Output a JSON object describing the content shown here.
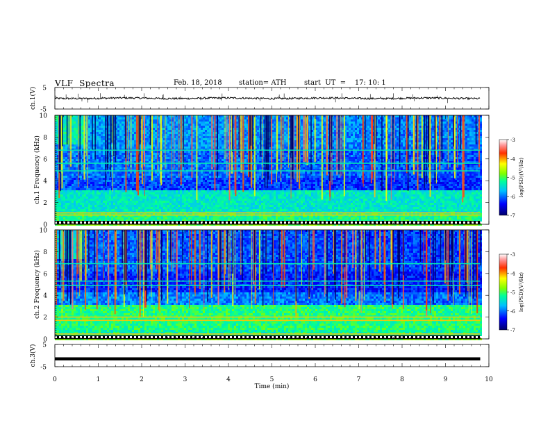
{
  "header": {
    "title": "VLF  Spectra",
    "date": "Feb. 18, 2018",
    "station": "station= ATH",
    "start": "start  UT  =    17: 10: 1"
  },
  "chart_data": [
    {
      "type": "line",
      "title": "",
      "ylabel": "ch.1(V)",
      "xlim": [
        0,
        10
      ],
      "ylim": [
        -5,
        5
      ],
      "yticks": [
        "5",
        "-5"
      ],
      "description_values": {
        "baseline_v": 0,
        "noise_amplitude_v": 0.6,
        "spike_amplitude_v": 2.5
      },
      "color": "#000000"
    },
    {
      "type": "heatmap",
      "ylabel": "ch.1  Frequency  (kHz)",
      "xlim": [
        0,
        10
      ],
      "ylim": [
        0,
        10
      ],
      "yticks": [
        "0",
        "2",
        "4",
        "6",
        "8",
        "10"
      ],
      "data_end_min": 9.8,
      "colorbar": {
        "label": "log(PSD)(V²/Hz)",
        "range": [
          -7,
          -3
        ],
        "ticks": [
          "-3",
          "-4",
          "-5",
          "-6",
          "-7"
        ]
      }
    },
    {
      "type": "heatmap",
      "ylabel": "ch.2  Frequency  (kHz)",
      "xlim": [
        0,
        10
      ],
      "ylim": [
        0,
        10
      ],
      "yticks": [
        "0",
        "2",
        "4",
        "6",
        "8",
        "10"
      ],
      "data_end_min": 9.8,
      "colorbar": {
        "label": "log(PSD)(V²/Hz)",
        "range": [
          -7,
          -3
        ],
        "ticks": [
          "-3",
          "-4",
          "-5",
          "-6",
          "-7"
        ]
      }
    },
    {
      "type": "line",
      "ylabel": "ch.3(V)",
      "xlim": [
        0,
        10
      ],
      "ylim": [
        -5,
        5
      ],
      "yticks": [
        "5",
        "-5"
      ],
      "description_values": {
        "level_v": -1.5
      },
      "color": "#000000"
    }
  ],
  "xaxis": {
    "label": "Time  (min)",
    "ticks": [
      "0",
      "1",
      "2",
      "3",
      "4",
      "5",
      "6",
      "7",
      "8",
      "9",
      "10"
    ]
  }
}
